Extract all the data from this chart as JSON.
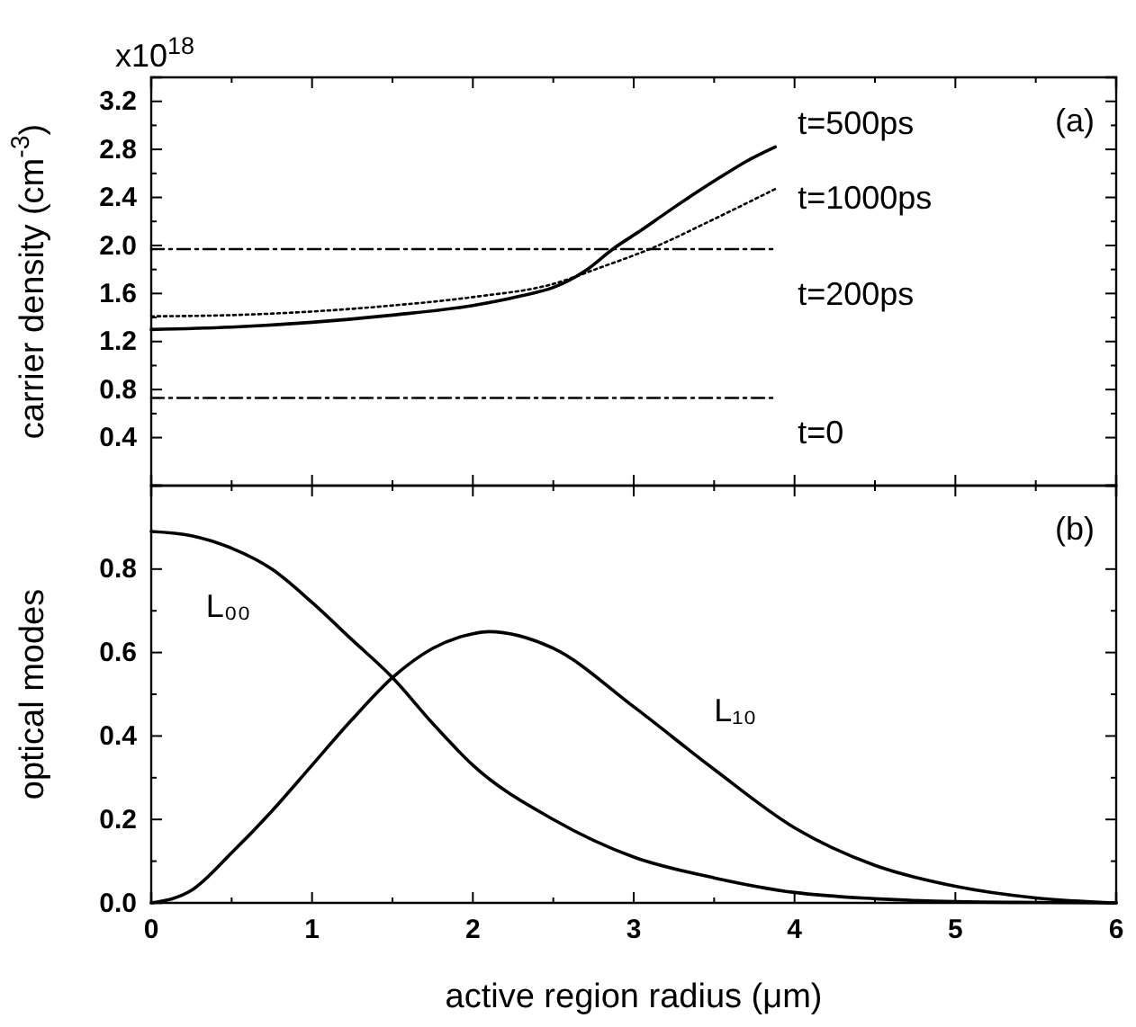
{
  "chart_data": [
    {
      "type": "line",
      "ylabel": "carrier density (cm$^{-3}$)",
      "xlim": [
        0,
        6
      ],
      "xticks": [
        0,
        1,
        2,
        3,
        4,
        5,
        6
      ],
      "ylim": [
        0,
        3.4
      ],
      "yticks": [
        0.4,
        0.8,
        1.2,
        1.6,
        {
          "value": 2,
          "label": "2.0"
        },
        2.4,
        2.8,
        3.2
      ],
      "tick_labels": "y",
      "legend": "right",
      "grid": false,
      "annotations": [
        "x10$^{18}$",
        "(a)"
      ],
      "series": [
        {
          "name": "t=500ps",
          "color": "#000000",
          "line_style": "solid",
          "x": [
            0,
            0.5,
            1,
            1.5,
            2,
            2.3,
            2.5,
            2.7,
            2.87,
            3.05,
            3.2,
            3.4,
            3.54,
            3.7,
            3.88
          ],
          "values": [
            1.3,
            1.32,
            1.36,
            1.42,
            1.5,
            1.58,
            1.65,
            1.79,
            1.97,
            2.13,
            2.27,
            2.45,
            2.57,
            2.7,
            2.82
          ]
        },
        {
          "name": "t=1000ps",
          "color": "#000000",
          "line_style": "dotted",
          "x": [
            0,
            0.5,
            1,
            1.5,
            2,
            2.5,
            2.8,
            3.1,
            3.5,
            3.88
          ],
          "values": [
            1.41,
            1.42,
            1.45,
            1.5,
            1.57,
            1.68,
            1.82,
            1.97,
            2.22,
            2.47
          ]
        },
        {
          "name": "t=200ps",
          "color": "#000000",
          "line_style": "dashed",
          "x": [
            0,
            3.88
          ],
          "values": [
            1.97,
            1.97
          ]
        },
        {
          "name": "t=0",
          "color": "#000000",
          "line_style": "dashed",
          "x": [
            0,
            3.88
          ],
          "values": [
            0.73,
            0.73
          ]
        }
      ]
    },
    {
      "type": "line",
      "xlabel": "active region radius (μm)",
      "ylabel": "optical modes",
      "xlim": [
        0,
        6
      ],
      "xticks": [
        0,
        1,
        2,
        3,
        4,
        5,
        6
      ],
      "ylim": [
        0,
        1.0
      ],
      "yticks": [
        {
          "value": 0,
          "label": "0.0"
        },
        0.2,
        0.4,
        0.6,
        0.8
      ],
      "legend": false,
      "grid": false,
      "annotations": [
        "(b)"
      ],
      "series": [
        {
          "name": "L₀₀",
          "color": "#000000",
          "line_style": "solid",
          "x": [
            0,
            0.25,
            0.5,
            0.75,
            1,
            1.25,
            1.5,
            1.75,
            2,
            2.5,
            3,
            3.5,
            4,
            4.5,
            5,
            5.5,
            6
          ],
          "values": [
            0.89,
            0.88,
            0.85,
            0.8,
            0.72,
            0.63,
            0.54,
            0.43,
            0.33,
            0.2,
            0.11,
            0.06,
            0.025,
            0.01,
            0.003,
            0.001,
            0
          ]
        },
        {
          "name": "L₁₀",
          "color": "#000000",
          "line_style": "solid",
          "x": [
            0,
            0.25,
            0.5,
            0.75,
            1,
            1.25,
            1.5,
            1.75,
            2,
            2.1,
            2.5,
            3,
            3.5,
            4,
            4.5,
            5,
            5.5,
            6
          ],
          "values": [
            0,
            0.03,
            0.12,
            0.22,
            0.33,
            0.44,
            0.54,
            0.61,
            0.645,
            0.65,
            0.61,
            0.47,
            0.32,
            0.18,
            0.09,
            0.04,
            0.012,
            0
          ]
        }
      ]
    }
  ]
}
